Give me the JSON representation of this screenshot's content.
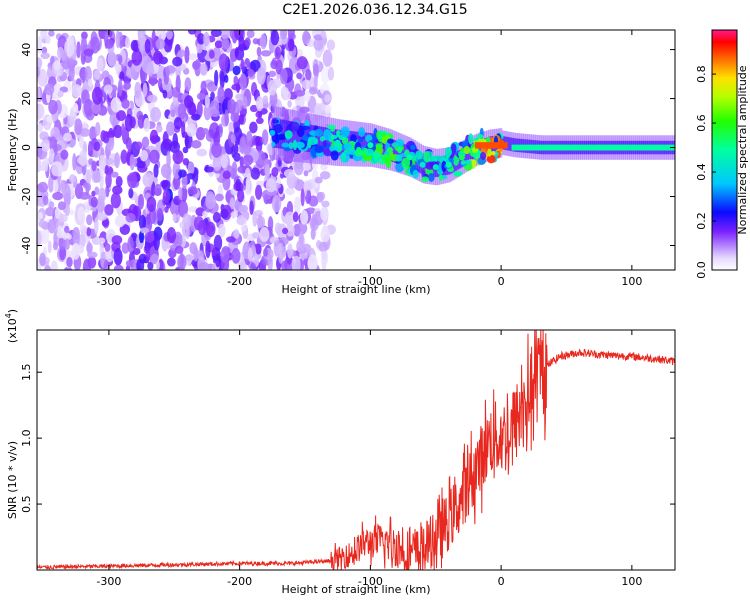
{
  "title": "C2E1.2026.036.12.34.G15",
  "chart_data": [
    {
      "type": "heatmap",
      "name": "spectrogram",
      "xlabel": "Height of straight line (km)",
      "ylabel": "Frequency (Hz)",
      "xlim": [
        -355,
        133
      ],
      "ylim": [
        -50,
        48
      ],
      "xticks": [
        -300,
        -200,
        -100,
        0,
        100
      ],
      "yticks": [
        -40,
        -20,
        0,
        20,
        40
      ],
      "colorbar": {
        "label": "Normalized spectral amplitude",
        "range": [
          0,
          0.98
        ],
        "ticks": [
          0.0,
          0.2,
          0.4,
          0.6,
          0.8
        ]
      },
      "ridge": {
        "description": "dominant frequency track vs height",
        "x": [
          -175,
          -150,
          -125,
          -100,
          -85,
          -70,
          -60,
          -50,
          -40,
          -30,
          -20,
          -10,
          0,
          10,
          30,
          60,
          100,
          133
        ],
        "y": [
          6,
          4,
          2,
          1,
          -1,
          -4,
          -7,
          -8,
          -7,
          -4,
          -1,
          1,
          2,
          1,
          0,
          0,
          0,
          0
        ],
        "amplitude": [
          0.35,
          0.3,
          0.45,
          0.5,
          0.55,
          0.5,
          0.45,
          0.45,
          0.5,
          0.55,
          0.7,
          0.85,
          0.9,
          0.55,
          0.5,
          0.5,
          0.5,
          0.5
        ]
      }
    },
    {
      "type": "line",
      "name": "snr",
      "xlabel": "Height of straight line (km)",
      "ylabel": "SNR (10 * v/v)",
      "yscale_label": "(x10",
      "yscale_exp": "4",
      "yscale_suffix": ")",
      "xlim": [
        -355,
        133
      ],
      "ylim": [
        0,
        1.82
      ],
      "xticks": [
        -300,
        -200,
        -100,
        0,
        100
      ],
      "yticks": [
        0.5,
        1.0,
        1.5
      ],
      "ytick_labels": [
        "0.5",
        "1.0",
        "1.5"
      ],
      "series": [
        {
          "name": "SNR",
          "color": "#e8281e",
          "x": [
            -355,
            -300,
            -250,
            -200,
            -160,
            -130,
            -115,
            -105,
            -95,
            -85,
            -75,
            -65,
            -55,
            -45,
            -35,
            -25,
            -15,
            -8,
            0,
            8,
            15,
            25,
            35,
            45,
            60,
            80,
            100,
            120,
            133
          ],
          "y": [
            0.02,
            0.03,
            0.04,
            0.05,
            0.05,
            0.07,
            0.12,
            0.2,
            0.22,
            0.2,
            0.15,
            0.12,
            0.2,
            0.3,
            0.45,
            0.65,
            0.85,
            1.0,
            1.0,
            1.05,
            1.2,
            1.4,
            1.55,
            1.62,
            1.65,
            1.63,
            1.62,
            1.6,
            1.58
          ]
        }
      ]
    }
  ]
}
